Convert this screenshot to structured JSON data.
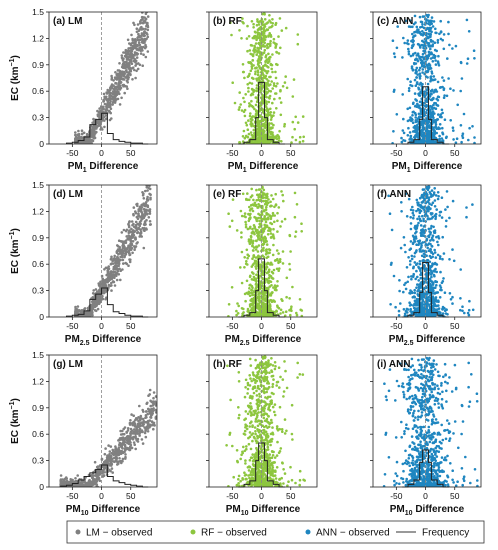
{
  "figure": {
    "y_axis_label": "EC (km",
    "y_axis_label_sup": "−1",
    "y_axis_label_end": ")",
    "x_axis_labels": [
      {
        "main": "PM",
        "sub": "1",
        "rest": " Difference"
      },
      {
        "main": "PM",
        "sub": "2.5",
        "rest": " Difference"
      },
      {
        "main": "PM",
        "sub": "10",
        "rest": " Difference"
      }
    ],
    "panel_titles": [
      "(a) LM",
      "(b) RF",
      "(c) ANN",
      "(d) LM",
      "(e) RF",
      "(f) ANN",
      "(g) LM",
      "(h) RF",
      "(i) ANN"
    ],
    "legend": [
      {
        "label": "LM − observed",
        "marker": "dot",
        "color": "#808080"
      },
      {
        "label": "RF − observed",
        "marker": "dot",
        "color": "#8dc63f"
      },
      {
        "label": "ANN − observed",
        "marker": "dot",
        "color": "#1f86c0"
      },
      {
        "label": "Frequency",
        "marker": "line",
        "color": "#333333"
      }
    ]
  },
  "chart_data": [
    {
      "panel": "(a) LM",
      "type": "scatter",
      "model": "LM",
      "color": "#808080",
      "xlabel": "PM1 Difference",
      "ylabel": "EC (km−1)",
      "xlim": [
        -90,
        95
      ],
      "ylim": [
        0,
        1.5
      ],
      "xticks": [
        -50,
        0,
        50
      ],
      "yticks": [
        0,
        0.3,
        0.6,
        0.9,
        1.2,
        1.5
      ],
      "shape": "diagonal",
      "slope": 0.013,
      "spread": 0.12,
      "xmin": -45,
      "xmax": 80,
      "histogram": {
        "bins": [
          -60,
          -50,
          -40,
          -30,
          -20,
          -10,
          0,
          10,
          20,
          30,
          40,
          50,
          60,
          70,
          80
        ],
        "heights": [
          0.01,
          0.02,
          0.04,
          0.08,
          0.22,
          0.28,
          0.35,
          0.12,
          0.05,
          0.03,
          0.02,
          0.01,
          0.01,
          0.0
        ]
      }
    },
    {
      "panel": "(b) RF",
      "type": "scatter",
      "model": "RF",
      "color": "#8dc63f",
      "xlabel": "PM1 Difference",
      "ylabel": "EC (km−1)",
      "xlim": [
        -90,
        95
      ],
      "ylim": [
        0,
        1.5
      ],
      "xticks": [
        -50,
        0,
        50
      ],
      "yticks": [
        0,
        0.3,
        0.6,
        0.9,
        1.2,
        1.5
      ],
      "shape": "vertical",
      "spread_x": 12,
      "xmin": -55,
      "xmax": 75,
      "histogram": {
        "bins": [
          -40,
          -30,
          -20,
          -10,
          -5,
          0,
          5,
          10,
          20,
          30,
          40
        ],
        "heights": [
          0.0,
          0.02,
          0.05,
          0.3,
          0.7,
          0.7,
          0.3,
          0.05,
          0.02,
          0.0
        ]
      }
    },
    {
      "panel": "(c) ANN",
      "type": "scatter",
      "model": "ANN",
      "color": "#1f86c0",
      "xlabel": "PM1 Difference",
      "ylabel": "EC (km−1)",
      "xlim": [
        -90,
        95
      ],
      "ylim": [
        0,
        1.5
      ],
      "xticks": [
        -50,
        0,
        50
      ],
      "yticks": [
        0,
        0.3,
        0.6,
        0.9,
        1.2,
        1.5
      ],
      "shape": "vertical",
      "spread_x": 14,
      "xmin": -60,
      "xmax": 85,
      "histogram": {
        "bins": [
          -40,
          -30,
          -20,
          -10,
          -5,
          0,
          5,
          10,
          20,
          30,
          40
        ],
        "heights": [
          0.0,
          0.02,
          0.05,
          0.28,
          0.65,
          0.65,
          0.28,
          0.05,
          0.02,
          0.0
        ]
      }
    },
    {
      "panel": "(d) LM",
      "type": "scatter",
      "model": "LM",
      "color": "#808080",
      "xlabel": "PM2.5 Difference",
      "ylabel": "EC (km−1)",
      "xlim": [
        -90,
        95
      ],
      "ylim": [
        0,
        1.5
      ],
      "xticks": [
        -50,
        0,
        50
      ],
      "yticks": [
        0,
        0.3,
        0.6,
        0.9,
        1.2,
        1.5
      ],
      "shape": "diagonal",
      "slope": 0.012,
      "spread": 0.12,
      "xmin": -45,
      "xmax": 85,
      "histogram": {
        "bins": [
          -60,
          -50,
          -40,
          -30,
          -20,
          -10,
          0,
          10,
          20,
          30,
          40,
          50,
          60,
          70,
          80
        ],
        "heights": [
          0.01,
          0.02,
          0.03,
          0.07,
          0.2,
          0.26,
          0.33,
          0.14,
          0.06,
          0.04,
          0.02,
          0.01,
          0.01,
          0.0
        ]
      }
    },
    {
      "panel": "(e) RF",
      "type": "scatter",
      "model": "RF",
      "color": "#8dc63f",
      "xlabel": "PM2.5 Difference",
      "ylabel": "EC (km−1)",
      "xlim": [
        -90,
        95
      ],
      "ylim": [
        0,
        1.5
      ],
      "xticks": [
        -50,
        0,
        50
      ],
      "yticks": [
        0,
        0.3,
        0.6,
        0.9,
        1.2,
        1.5
      ],
      "shape": "vertical",
      "spread_x": 13,
      "xmin": -60,
      "xmax": 70,
      "histogram": {
        "bins": [
          -40,
          -30,
          -20,
          -10,
          -5,
          0,
          5,
          10,
          20,
          30,
          40
        ],
        "heights": [
          0.0,
          0.02,
          0.05,
          0.3,
          0.66,
          0.66,
          0.3,
          0.05,
          0.02,
          0.0
        ]
      }
    },
    {
      "panel": "(f) ANN",
      "type": "scatter",
      "model": "ANN",
      "color": "#1f86c0",
      "xlabel": "PM2.5 Difference",
      "ylabel": "EC (km−1)",
      "xlim": [
        -90,
        95
      ],
      "ylim": [
        0,
        1.5
      ],
      "xticks": [
        -50,
        0,
        50
      ],
      "yticks": [
        0,
        0.3,
        0.6,
        0.9,
        1.2,
        1.5
      ],
      "shape": "vertical",
      "spread_x": 14,
      "xmin": -65,
      "xmax": 85,
      "histogram": {
        "bins": [
          -40,
          -30,
          -20,
          -10,
          -5,
          0,
          5,
          10,
          20,
          30,
          40
        ],
        "heights": [
          0.0,
          0.02,
          0.05,
          0.28,
          0.62,
          0.62,
          0.28,
          0.05,
          0.02,
          0.0
        ]
      }
    },
    {
      "panel": "(g) LM",
      "type": "scatter",
      "model": "LM",
      "color": "#808080",
      "xlabel": "PM10 Difference",
      "ylabel": "EC (km−1)",
      "xlim": [
        -90,
        95
      ],
      "ylim": [
        0,
        1.5
      ],
      "xticks": [
        -50,
        0,
        50
      ],
      "yticks": [
        0,
        0.3,
        0.6,
        0.9,
        1.2,
        1.5
      ],
      "shape": "diagonal",
      "slope": 0.0075,
      "spread": 0.12,
      "xmin": -70,
      "xmax": 95,
      "histogram": {
        "bins": [
          -70,
          -60,
          -50,
          -40,
          -30,
          -20,
          -10,
          0,
          10,
          20,
          30,
          40,
          50,
          60,
          70,
          80
        ],
        "heights": [
          0.01,
          0.02,
          0.04,
          0.08,
          0.12,
          0.16,
          0.2,
          0.25,
          0.12,
          0.07,
          0.05,
          0.03,
          0.02,
          0.01,
          0.0
        ]
      }
    },
    {
      "panel": "(h) RF",
      "type": "scatter",
      "model": "RF",
      "color": "#8dc63f",
      "xlabel": "PM10 Difference",
      "ylabel": "EC (km−1)",
      "xlim": [
        -90,
        95
      ],
      "ylim": [
        0,
        1.5
      ],
      "xticks": [
        -50,
        0,
        50
      ],
      "yticks": [
        0,
        0.3,
        0.6,
        0.9,
        1.2,
        1.5
      ],
      "shape": "vertical",
      "spread_x": 15,
      "xmin": -60,
      "xmax": 75,
      "histogram": {
        "bins": [
          -40,
          -30,
          -20,
          -10,
          -5,
          0,
          5,
          10,
          20,
          30,
          40
        ],
        "heights": [
          0.0,
          0.03,
          0.07,
          0.3,
          0.5,
          0.5,
          0.3,
          0.07,
          0.03,
          0.0
        ]
      }
    },
    {
      "panel": "(i) ANN",
      "type": "scatter",
      "model": "ANN",
      "color": "#1f86c0",
      "xlabel": "PM10 Difference",
      "ylabel": "EC (km−1)",
      "xlim": [
        -90,
        95
      ],
      "ylim": [
        0,
        1.5
      ],
      "xticks": [
        -50,
        0,
        50
      ],
      "yticks": [
        0,
        0.3,
        0.6,
        0.9,
        1.2,
        1.5
      ],
      "shape": "vertical",
      "spread_x": 18,
      "xmin": -75,
      "xmax": 90,
      "histogram": {
        "bins": [
          -40,
          -30,
          -20,
          -10,
          -5,
          0,
          5,
          10,
          20,
          30,
          40
        ],
        "heights": [
          0.0,
          0.03,
          0.08,
          0.28,
          0.42,
          0.42,
          0.28,
          0.08,
          0.03,
          0.0
        ]
      }
    }
  ]
}
